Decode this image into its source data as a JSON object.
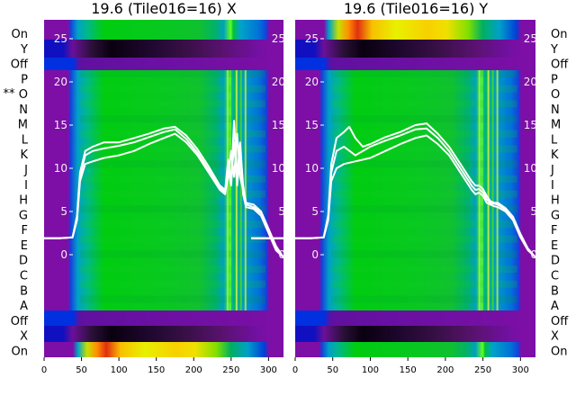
{
  "figure": {
    "row_labels": [
      "On",
      "Y",
      "Off",
      "P",
      "O",
      "N",
      "M",
      "L",
      "K",
      "J",
      "I",
      "H",
      "G",
      "F",
      "E",
      "D",
      "C",
      "B",
      "A",
      "Off",
      "X",
      "On"
    ],
    "marker_text": "**",
    "marker_row": "O"
  },
  "chart_data": [
    {
      "type": "heatmap",
      "title": "19.6 (Tile016=16) X",
      "x_ticks": [
        0,
        50,
        100,
        150,
        200,
        250,
        300
      ],
      "xlim": [
        0,
        320
      ],
      "overlay_y_ticks": [
        0,
        5,
        10,
        15,
        20,
        25
      ],
      "overlay_ylim": [
        -16.7,
        27.7
      ],
      "colormap": "spectral (black-purple-blue-cyan-green-yellow-red)",
      "series": [
        {
          "name": "",
          "x": [
            0,
            20,
            38,
            44,
            48,
            55,
            65,
            80,
            100,
            120,
            140,
            160,
            175,
            190,
            205,
            220,
            235,
            242,
            246,
            250,
            254,
            258,
            262,
            266,
            270,
            280,
            290,
            300,
            310,
            320
          ],
          "y": [
            1.9,
            1.9,
            2.0,
            4.0,
            8.5,
            10.5,
            10.8,
            11.2,
            11.5,
            12.0,
            12.8,
            13.5,
            14.0,
            13.0,
            11.5,
            9.5,
            7.5,
            7.0,
            10.0,
            8.0,
            13.0,
            8.0,
            12.0,
            7.0,
            5.5,
            5.3,
            4.5,
            2.5,
            0.5,
            -0.3
          ]
        },
        {
          "name": "",
          "x": [
            0,
            20,
            38,
            44,
            48,
            55,
            65,
            80,
            100,
            120,
            140,
            160,
            175,
            190,
            205,
            220,
            235,
            242,
            246,
            250,
            254,
            258,
            262,
            266,
            270,
            280,
            290,
            300,
            310,
            320
          ],
          "y": [
            1.9,
            1.9,
            2.0,
            4.2,
            9.0,
            11.5,
            12.0,
            12.3,
            12.6,
            13.0,
            13.6,
            14.2,
            14.5,
            13.4,
            11.8,
            9.8,
            7.8,
            7.2,
            9.0,
            12.0,
            9.0,
            14.0,
            9.0,
            7.5,
            5.8,
            5.5,
            4.8,
            2.8,
            0.8,
            -0.3
          ]
        },
        {
          "name": "",
          "x": [
            0,
            20,
            38,
            44,
            48,
            55,
            65,
            80,
            100,
            120,
            140,
            160,
            175,
            190,
            205,
            220,
            235,
            242,
            246,
            250,
            254,
            258,
            262,
            266,
            270,
            280,
            290,
            300,
            310,
            320
          ],
          "y": [
            1.9,
            1.9,
            2.0,
            4.5,
            9.5,
            12.0,
            12.5,
            13.0,
            13.0,
            13.5,
            14.0,
            14.6,
            14.8,
            13.8,
            12.2,
            10.2,
            8.0,
            7.5,
            11.0,
            8.5,
            15.5,
            9.0,
            13.0,
            8.0,
            6.0,
            5.8,
            5.0,
            3.0,
            1.0,
            -0.3
          ]
        }
      ]
    },
    {
      "type": "heatmap",
      "title": "19.6 (Tile016=16) Y",
      "x_ticks": [
        0,
        50,
        100,
        150,
        200,
        250,
        300
      ],
      "xlim": [
        0,
        320
      ],
      "overlay_y_ticks": [
        0,
        5,
        10,
        15,
        20,
        25
      ],
      "overlay_ylim": [
        -16.7,
        27.7
      ],
      "colormap": "spectral (black-purple-blue-cyan-green-yellow-red)",
      "series": [
        {
          "name": "",
          "x": [
            0,
            20,
            38,
            44,
            48,
            55,
            65,
            80,
            100,
            120,
            140,
            160,
            175,
            190,
            205,
            220,
            235,
            240,
            245,
            250,
            255,
            260,
            265,
            270,
            280,
            290,
            300,
            310,
            320
          ],
          "y": [
            1.9,
            1.9,
            2.0,
            4.0,
            8.5,
            10.0,
            10.5,
            10.8,
            11.2,
            12.0,
            12.8,
            13.5,
            13.8,
            12.8,
            11.5,
            9.5,
            7.5,
            7.0,
            7.2,
            6.8,
            6.0,
            5.8,
            5.6,
            5.5,
            5.0,
            4.0,
            2.0,
            0.5,
            -0.3
          ]
        },
        {
          "name": "",
          "x": [
            0,
            20,
            38,
            44,
            48,
            55,
            65,
            80,
            100,
            120,
            140,
            160,
            175,
            190,
            205,
            220,
            235,
            240,
            245,
            250,
            255,
            260,
            265,
            270,
            280,
            290,
            300,
            310,
            320
          ],
          "y": [
            1.9,
            1.9,
            2.0,
            4.3,
            9.5,
            12.0,
            12.5,
            11.5,
            12.5,
            13.2,
            13.8,
            14.5,
            14.6,
            13.5,
            12.0,
            10.0,
            8.0,
            7.5,
            7.6,
            7.2,
            6.4,
            6.0,
            5.9,
            5.8,
            5.2,
            4.2,
            2.2,
            0.6,
            -0.3
          ]
        },
        {
          "name": "",
          "x": [
            0,
            20,
            38,
            44,
            48,
            55,
            65,
            72,
            80,
            90,
            100,
            120,
            140,
            160,
            175,
            190,
            205,
            220,
            235,
            240,
            245,
            250,
            255,
            260,
            265,
            270,
            280,
            290,
            300,
            310,
            320
          ],
          "y": [
            1.9,
            1.9,
            2.0,
            4.6,
            10.5,
            13.5,
            14.2,
            14.8,
            13.5,
            12.5,
            12.8,
            13.6,
            14.2,
            15.0,
            15.2,
            14.0,
            12.5,
            10.5,
            8.5,
            8.0,
            8.0,
            7.6,
            6.8,
            6.2,
            6.0,
            6.0,
            5.4,
            4.4,
            2.4,
            0.7,
            -0.3
          ]
        }
      ]
    }
  ]
}
